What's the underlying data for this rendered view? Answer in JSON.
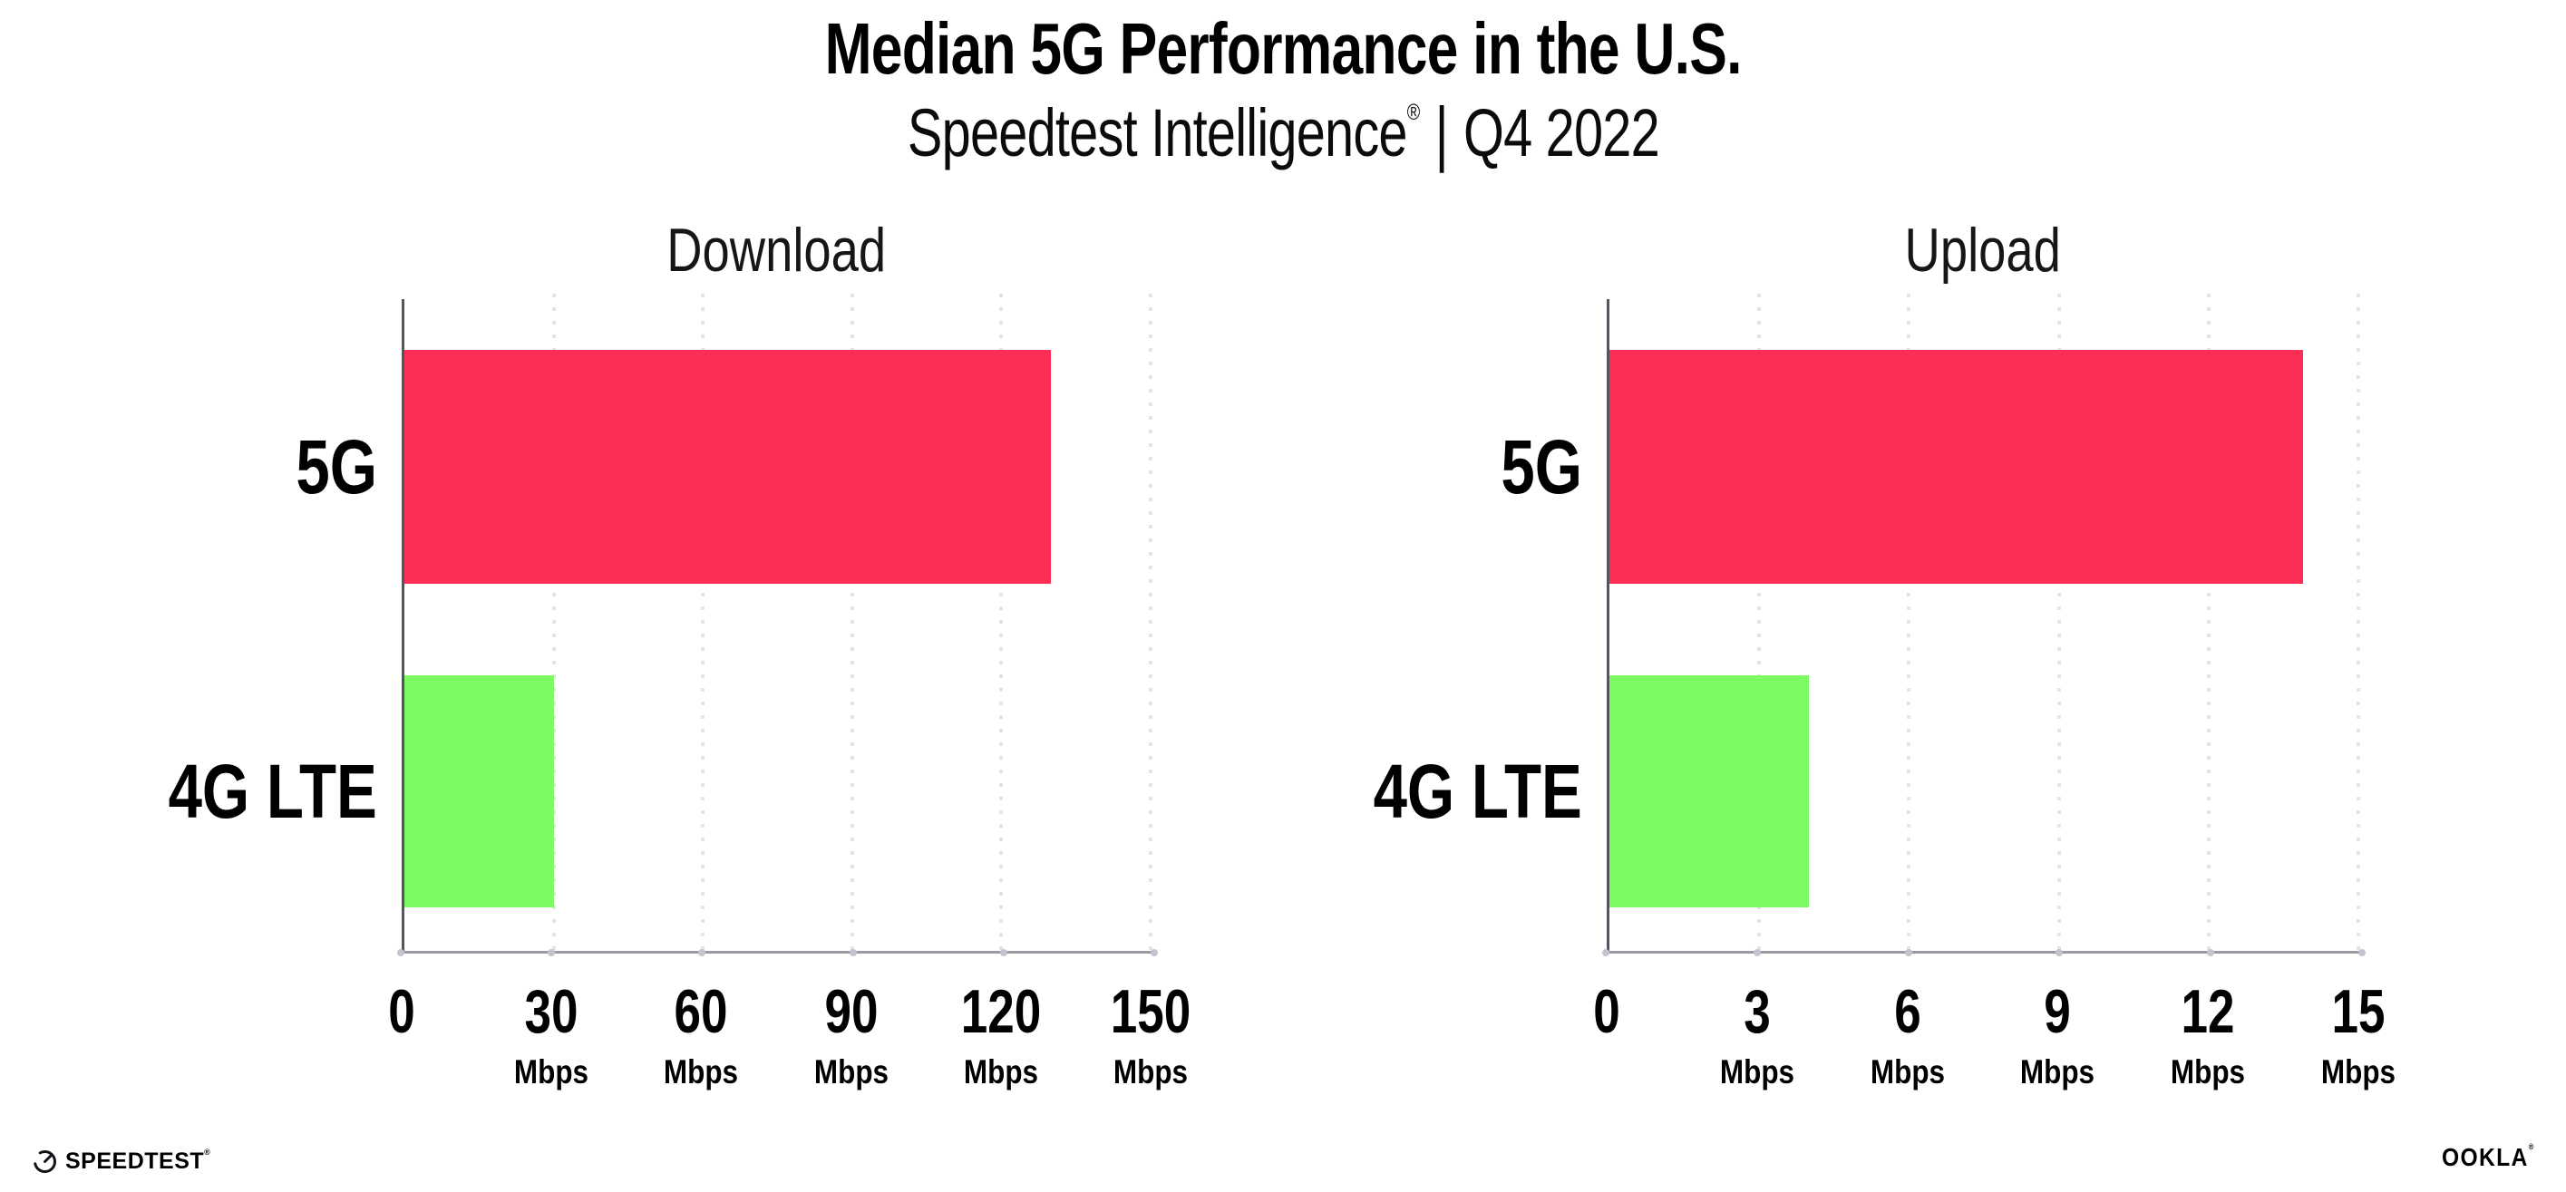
{
  "header": {
    "title": "Median 5G Performance in the U.S.",
    "subtitle": {
      "brand": "Speedtest Intelligence",
      "trademark": "®",
      "separator": "|",
      "period": "Q4 2022"
    }
  },
  "chart_data": [
    {
      "type": "bar",
      "orientation": "horizontal",
      "title": "Download",
      "categories": [
        "5G",
        "4G LTE"
      ],
      "values": [
        130,
        30
      ],
      "unit": "Mbps",
      "xlim": [
        0,
        150
      ],
      "xticks": [
        0,
        30,
        60,
        90,
        120,
        150
      ],
      "bar_colors": [
        "#fd2e56",
        "#7cfb63"
      ],
      "grid": "dotted-vertical",
      "legend": "none"
    },
    {
      "type": "bar",
      "orientation": "horizontal",
      "title": "Upload",
      "categories": [
        "5G",
        "4G LTE"
      ],
      "values": [
        13.9,
        4
      ],
      "unit": "Mbps",
      "xlim": [
        0,
        15
      ],
      "xticks": [
        0,
        3,
        6,
        9,
        12,
        15
      ],
      "bar_colors": [
        "#fd2e56",
        "#7cfb63"
      ],
      "grid": "dotted-vertical",
      "legend": "none"
    }
  ],
  "footer": {
    "speedtest_logo_text": "SPEEDTEST",
    "speedtest_trademark": "®",
    "ookla_logo_text": "OOKLA",
    "ookla_trademark": "®"
  },
  "colors": {
    "bar_5g_pink": "#fd2e56",
    "bar_4g_green": "#7cfb63",
    "gridline": "#e3e3ee",
    "axis_y": "#55555e",
    "axis_x": "#9a9aa3",
    "text": "#000000"
  }
}
